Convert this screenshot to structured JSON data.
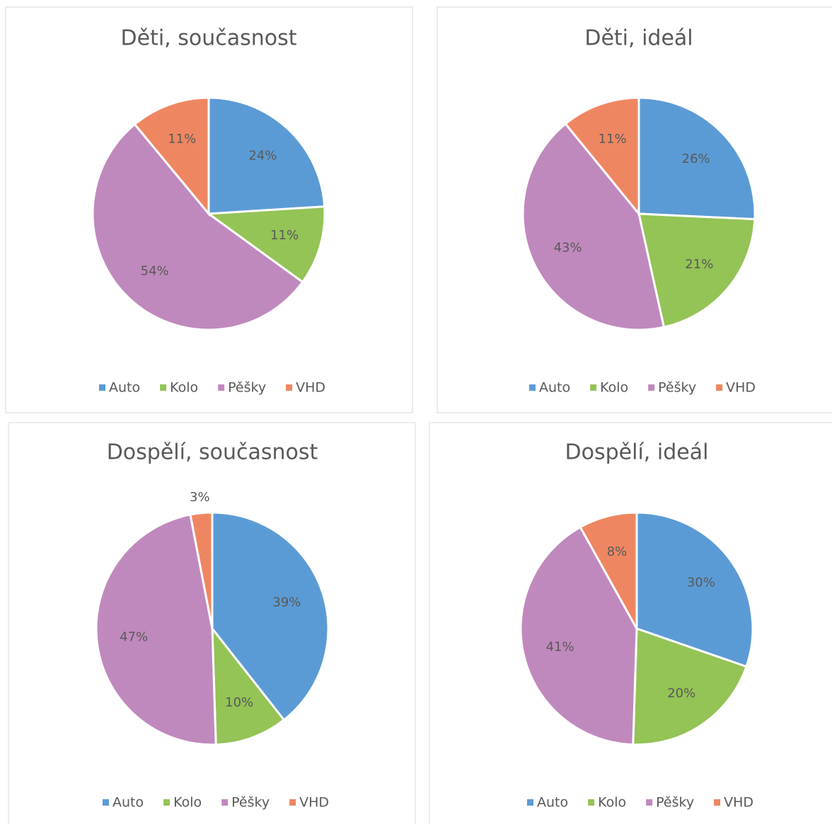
{
  "chart_data": [
    {
      "type": "pie",
      "title": "Děti, současnost",
      "categories": [
        "Auto",
        "Kolo",
        "Pěšky",
        "VHD"
      ],
      "values": [
        24,
        11,
        54,
        11
      ],
      "value_labels": [
        "24%",
        "11%",
        "54%",
        "11%"
      ],
      "colors": [
        "#5b9bd5",
        "#94c356",
        "#c089bd",
        "#ee8761"
      ],
      "legend": "bottom"
    },
    {
      "type": "pie",
      "title": "Děti, ideál",
      "categories": [
        "Auto",
        "Kolo",
        "Pěšky",
        "VHD"
      ],
      "values": [
        26,
        21,
        43,
        11
      ],
      "value_labels": [
        "26%",
        "21%",
        "43%",
        "11%"
      ],
      "colors": [
        "#5b9bd5",
        "#94c356",
        "#c089bd",
        "#ee8761"
      ],
      "legend": "bottom"
    },
    {
      "type": "pie",
      "title": "Dospělí, současnost",
      "categories": [
        "Auto",
        "Kolo",
        "Pěšky",
        "VHD"
      ],
      "values": [
        39,
        10,
        47,
        3
      ],
      "value_labels": [
        "39%",
        "10%",
        "47%",
        "3%"
      ],
      "colors": [
        "#5b9bd5",
        "#94c356",
        "#c089bd",
        "#ee8761"
      ],
      "legend": "bottom"
    },
    {
      "type": "pie",
      "title": "Dospělí, ideál",
      "categories": [
        "Auto",
        "Kolo",
        "Pěšky",
        "VHD"
      ],
      "values": [
        30,
        20,
        41,
        8
      ],
      "value_labels": [
        "30%",
        "20%",
        "41%",
        "8%"
      ],
      "colors": [
        "#5b9bd5",
        "#94c356",
        "#c089bd",
        "#ee8761"
      ],
      "legend": "bottom"
    }
  ]
}
